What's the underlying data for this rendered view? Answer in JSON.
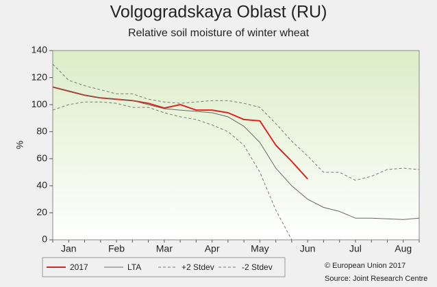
{
  "chart_data": {
    "type": "line",
    "title": "Volgogradskaya Oblast (RU)",
    "subtitle": "Relative soil moisture of winter wheat",
    "y_label": "%",
    "categories": [
      null,
      "Jan",
      null,
      null,
      "Feb",
      null,
      null,
      "Mar",
      null,
      null,
      "Apr",
      null,
      null,
      "May",
      null,
      null,
      "Jun",
      null,
      null,
      "Jul",
      null,
      null,
      "Aug",
      null
    ],
    "series": [
      {
        "name": "2017",
        "color": "#e3211c",
        "style": "solid",
        "width": 2,
        "values": [
          113,
          110,
          107,
          105,
          104,
          103,
          101,
          97.5,
          100,
          96,
          96,
          94,
          89,
          88,
          70,
          58,
          45,
          null,
          null,
          null,
          null,
          null,
          null,
          null
        ]
      },
      {
        "name": "LTA",
        "color": "#666666",
        "style": "solid",
        "width": 1,
        "values": [
          113,
          110,
          107,
          105,
          104,
          103,
          100,
          97,
          96,
          95,
          94,
          91,
          84,
          72,
          53,
          40,
          30,
          24,
          21,
          16,
          16,
          15.5,
          15,
          16
        ]
      },
      {
        "name": "+2 Stdev",
        "color": "#777777",
        "style": "dashed",
        "width": 1,
        "values": [
          130,
          118,
          114,
          111,
          108,
          108,
          104,
          102,
          101,
          102,
          103,
          103,
          101,
          98,
          86,
          73,
          62,
          50,
          50,
          44,
          47,
          52,
          53,
          52
        ]
      },
      {
        "name": "-2 Stdev",
        "color": "#777777",
        "style": "dashed",
        "width": 1,
        "values": [
          96,
          100,
          102,
          102,
          101,
          98,
          98,
          94,
          91,
          89,
          85,
          80,
          70,
          50,
          22,
          0,
          null,
          null,
          null,
          null,
          null,
          null,
          null,
          null
        ]
      }
    ],
    "ylim": [
      0,
      140
    ],
    "yticks": [
      0,
      20,
      40,
      60,
      80,
      100,
      120,
      140
    ],
    "notes": [
      "© European Union 2017",
      "Source: Joint Research Centre"
    ]
  }
}
